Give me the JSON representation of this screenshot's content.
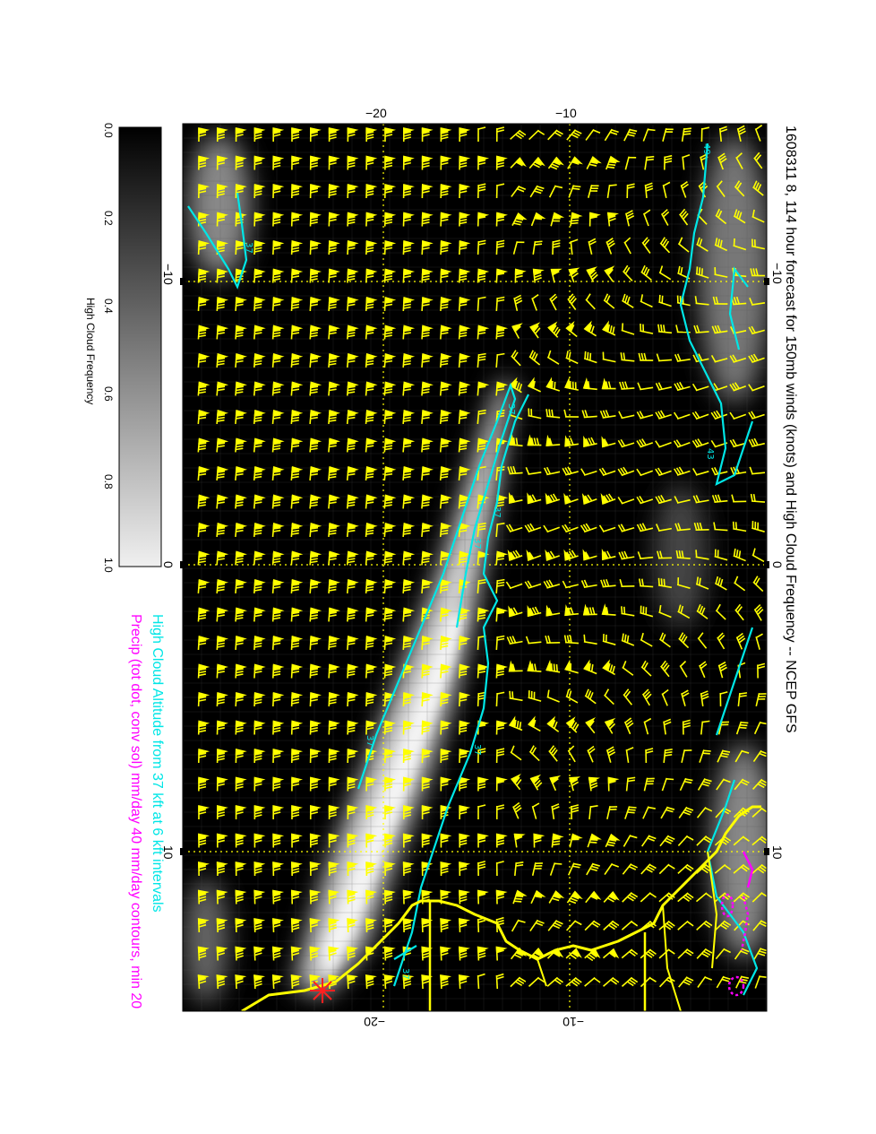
{
  "title": "1608311 8, 114 hour forecast for 150mb winds (knots) and High Cloud Frequency -- NCEP GFS",
  "legend": {
    "line1": "High Cloud Altitude from 37 kft at 6 kft intervals",
    "line2": "Precip (tot dot, conv sol) mm/day 40 mm/day contours, min 20"
  },
  "colorbar": {
    "label": "High Cloud Frequency",
    "ticks": [
      "0.0",
      "0.2",
      "0.4",
      "0.6",
      "0.8",
      "1.0"
    ]
  },
  "axes": {
    "top_ticks": [
      "−20",
      "−10"
    ],
    "bottom_ticks": [
      "−20",
      "−10"
    ],
    "inner_left_ticks": [
      "−10",
      "0",
      "10"
    ],
    "inner_right_ticks": [
      "−10",
      "0",
      "10"
    ]
  },
  "contour_labels": [
    "37",
    "49",
    "43",
    "37",
    "37",
    "37",
    "37",
    "37",
    "37"
  ],
  "colors": {
    "background": "#000000",
    "barb": "#ffff00",
    "contour": "#00e6e6",
    "coast": "#ffff00",
    "precip": "#ff00ff",
    "marker": "#ff2020"
  },
  "marker_icon": "red-star-marker"
}
